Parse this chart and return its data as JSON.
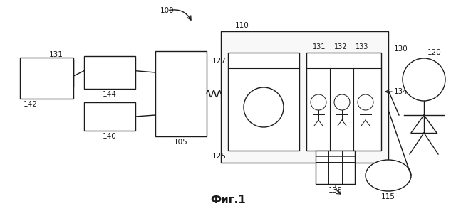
{
  "bg_color": "#ffffff",
  "line_color": "#1a1a1a",
  "label_color": "#1a1a1a",
  "title": "Фиг.1",
  "fs_label": 7.5,
  "fs_title": 11
}
